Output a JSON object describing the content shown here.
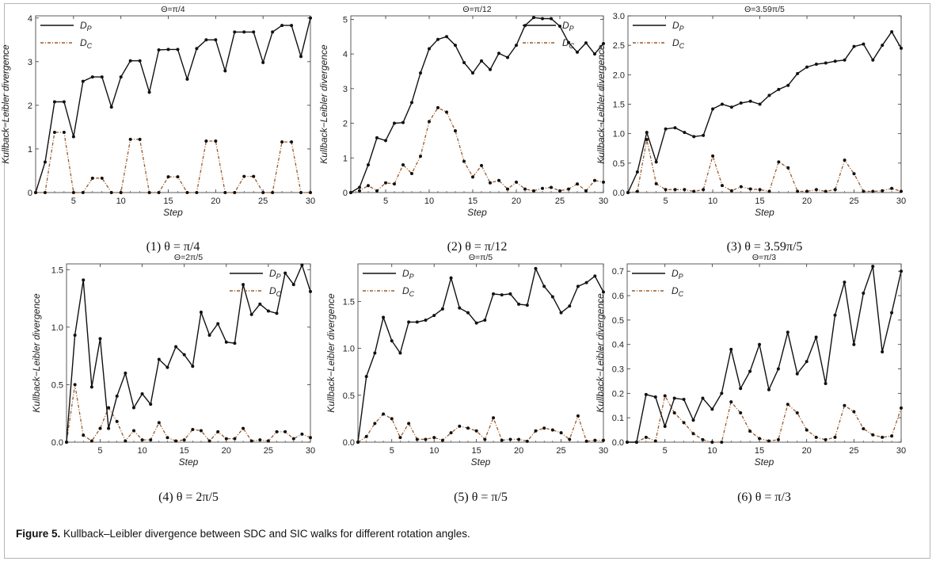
{
  "figure_caption": {
    "label": "Figure 5.",
    "text": " Kullback–Leibler divergence between SDC and SIC walks for different rotation angles."
  },
  "colors": {
    "dp": "#111111",
    "dc": "#9c5a2a"
  },
  "chart_data": [
    {
      "type": "line",
      "title": "Θ=π/4",
      "caption": "(1) θ = π/4",
      "xlabel": "Step",
      "ylabel": "Kullback−Leibler divergence",
      "xlim": [
        1,
        30
      ],
      "ylim": [
        0,
        4.05
      ],
      "xticks": [
        5,
        10,
        15,
        20,
        25,
        30
      ],
      "yticks": [
        0,
        1,
        2,
        3,
        4
      ],
      "yticklabels": [
        "0",
        "1",
        "2",
        "3",
        "4"
      ],
      "legend": "top-left",
      "series": [
        {
          "name": "D",
          "sub": "P",
          "style": "solid",
          "values": [
            0,
            0.7,
            2.08,
            2.08,
            1.28,
            2.55,
            2.65,
            2.65,
            1.96,
            2.65,
            3.02,
            3.02,
            2.3,
            3.27,
            3.28,
            3.28,
            2.6,
            3.3,
            3.5,
            3.5,
            2.79,
            3.68,
            3.68,
            3.68,
            2.98,
            3.68,
            3.83,
            3.83,
            3.12,
            4.0
          ]
        },
        {
          "name": "D",
          "sub": "C",
          "style": "dashed",
          "values": [
            0,
            0,
            1.38,
            1.38,
            0,
            0,
            0.33,
            0.33,
            0,
            0,
            1.22,
            1.22,
            0,
            0,
            0.36,
            0.36,
            0,
            0,
            1.18,
            1.18,
            0,
            0,
            0.37,
            0.37,
            0,
            0,
            1.16,
            1.16,
            0,
            0
          ]
        }
      ]
    },
    {
      "type": "line",
      "title": "Θ=π/12",
      "caption": "(2) θ = π/12",
      "xlabel": "Step",
      "ylabel": "Kullback−Leibler divergence",
      "xlim": [
        1,
        30
      ],
      "ylim": [
        0,
        5.1
      ],
      "xticks": [
        5,
        10,
        15,
        20,
        25,
        30
      ],
      "yticks": [
        0,
        1,
        2,
        3,
        4,
        5
      ],
      "yticklabels": [
        "0",
        "1",
        "2",
        "3",
        "4",
        "5"
      ],
      "legend": "top-right",
      "series": [
        {
          "name": "D",
          "sub": "P",
          "style": "solid",
          "values": [
            0,
            0.15,
            0.8,
            1.58,
            1.5,
            2.0,
            2.02,
            2.6,
            3.45,
            4.15,
            4.42,
            4.5,
            4.25,
            3.75,
            3.45,
            3.8,
            3.55,
            4.02,
            3.9,
            4.25,
            4.82,
            5.05,
            5.02,
            5.02,
            4.8,
            4.33,
            4.05,
            4.32,
            4.0,
            4.3
          ]
        },
        {
          "name": "D",
          "sub": "C",
          "style": "dashed",
          "values": [
            0,
            0.05,
            0.2,
            0.05,
            0.28,
            0.25,
            0.8,
            0.55,
            1.05,
            2.05,
            2.45,
            2.32,
            1.78,
            0.9,
            0.45,
            0.78,
            0.28,
            0.35,
            0.1,
            0.3,
            0.1,
            0.05,
            0.12,
            0.15,
            0.05,
            0.1,
            0.25,
            0.05,
            0.35,
            0.3
          ]
        }
      ]
    },
    {
      "type": "line",
      "title": "Θ=3.59π/5",
      "caption": "(3) θ = 3.59π/5",
      "xlabel": "Step",
      "ylabel": "Kullback−Leibler divergence",
      "xlim": [
        1,
        30
      ],
      "ylim": [
        0,
        3.0
      ],
      "xticks": [
        5,
        10,
        15,
        20,
        25,
        30
      ],
      "yticks": [
        0,
        0.5,
        1.0,
        1.5,
        2.0,
        2.5,
        3.0
      ],
      "yticklabels": [
        "0.0",
        "0.5",
        "1.0",
        "1.5",
        "2.0",
        "2.5",
        "3.0"
      ],
      "legend": "top-left",
      "series": [
        {
          "name": "D",
          "sub": "P",
          "style": "solid",
          "values": [
            0,
            0.35,
            1.02,
            0.52,
            1.08,
            1.1,
            1.02,
            0.95,
            0.97,
            1.42,
            1.5,
            1.45,
            1.52,
            1.55,
            1.5,
            1.65,
            1.75,
            1.82,
            2.02,
            2.13,
            2.18,
            2.2,
            2.23,
            2.25,
            2.48,
            2.52,
            2.25,
            2.5,
            2.73,
            2.45
          ]
        },
        {
          "name": "D",
          "sub": "C",
          "style": "dashed",
          "values": [
            0,
            0.02,
            0.9,
            0.15,
            0.05,
            0.05,
            0.05,
            0.02,
            0.05,
            0.62,
            0.12,
            0.03,
            0.1,
            0.06,
            0.05,
            0.02,
            0.52,
            0.42,
            0.02,
            0.02,
            0.05,
            0.02,
            0.05,
            0.55,
            0.32,
            0.02,
            0.02,
            0.03,
            0.07,
            0.02
          ]
        }
      ]
    },
    {
      "type": "line",
      "title": "Θ=2π/5",
      "caption": "(4) θ = 2π/5",
      "xlabel": "Step",
      "ylabel": "Kullback−Leibler divergence",
      "xlim": [
        1,
        30
      ],
      "ylim": [
        0,
        1.55
      ],
      "xticks": [
        5,
        10,
        15,
        20,
        25,
        30
      ],
      "yticks": [
        0,
        0.5,
        1.0,
        1.5
      ],
      "yticklabels": [
        "0.0",
        "0.5",
        "1.0",
        "1.5"
      ],
      "legend": "top-right",
      "series": [
        {
          "name": "D",
          "sub": "P",
          "style": "solid",
          "values": [
            0,
            0.93,
            1.41,
            0.48,
            0.9,
            0.12,
            0.4,
            0.6,
            0.3,
            0.42,
            0.33,
            0.72,
            0.65,
            0.83,
            0.76,
            0.66,
            1.13,
            0.93,
            1.03,
            0.87,
            0.86,
            1.37,
            1.11,
            1.2,
            1.14,
            1.12,
            1.47,
            1.37,
            1.54,
            1.31
          ]
        },
        {
          "name": "D",
          "sub": "C",
          "style": "dashed",
          "values": [
            0,
            0.5,
            0.06,
            0.01,
            0.12,
            0.3,
            0.18,
            0.01,
            0.1,
            0.02,
            0.02,
            0.17,
            0.04,
            0.01,
            0.02,
            0.11,
            0.1,
            0.01,
            0.09,
            0.03,
            0.03,
            0.12,
            0.01,
            0.02,
            0.01,
            0.09,
            0.09,
            0.03,
            0.07,
            0.04
          ]
        }
      ]
    },
    {
      "type": "line",
      "title": "Θ=π/5",
      "caption": "(5) θ = π/5",
      "xlabel": "Step",
      "ylabel": "Kullback−Leibler divergence",
      "xlim": [
        1,
        30
      ],
      "ylim": [
        0,
        1.9
      ],
      "xticks": [
        5,
        10,
        15,
        20,
        25,
        30
      ],
      "yticks": [
        0,
        0.5,
        1.0,
        1.5
      ],
      "yticklabels": [
        "0.0",
        "0.5",
        "1.0",
        "1.5"
      ],
      "legend": "top-left",
      "series": [
        {
          "name": "D",
          "sub": "P",
          "style": "solid",
          "values": [
            0,
            0.7,
            0.95,
            1.33,
            1.08,
            0.95,
            1.28,
            1.28,
            1.3,
            1.35,
            1.42,
            1.75,
            1.43,
            1.38,
            1.27,
            1.3,
            1.58,
            1.57,
            1.58,
            1.47,
            1.46,
            1.85,
            1.66,
            1.55,
            1.38,
            1.45,
            1.66,
            1.7,
            1.77,
            1.6
          ]
        },
        {
          "name": "D",
          "sub": "C",
          "style": "dashed",
          "values": [
            0,
            0.06,
            0.2,
            0.3,
            0.25,
            0.05,
            0.2,
            0.03,
            0.03,
            0.05,
            0.02,
            0.1,
            0.17,
            0.15,
            0.12,
            0.03,
            0.26,
            0.02,
            0.03,
            0.03,
            0.01,
            0.12,
            0.15,
            0.13,
            0.1,
            0.03,
            0.28,
            0.01,
            0.02,
            0.02
          ]
        }
      ]
    },
    {
      "type": "line",
      "title": "Θ=π/3",
      "caption": "(6) θ = π/3",
      "xlabel": "Step",
      "ylabel": "Kullback−Leibler divergence",
      "xlim": [
        1,
        30
      ],
      "ylim": [
        0,
        0.73
      ],
      "xticks": [
        5,
        10,
        15,
        20,
        25,
        30
      ],
      "yticks": [
        0,
        0.1,
        0.2,
        0.3,
        0.4,
        0.5,
        0.6,
        0.7
      ],
      "yticklabels": [
        "0.0",
        "0.1",
        "0.2",
        "0.3",
        "0.4",
        "0.5",
        "0.6",
        "0.7"
      ],
      "legend": "top-left",
      "series": [
        {
          "name": "D",
          "sub": "P",
          "style": "solid",
          "values": [
            0,
            0,
            0.195,
            0.185,
            0.065,
            0.18,
            0.175,
            0.09,
            0.18,
            0.135,
            0.2,
            0.38,
            0.22,
            0.29,
            0.4,
            0.215,
            0.3,
            0.45,
            0.28,
            0.33,
            0.43,
            0.24,
            0.52,
            0.655,
            0.4,
            0.61,
            0.72,
            0.37,
            0.53,
            0.7
          ]
        },
        {
          "name": "D",
          "sub": "C",
          "style": "dashed",
          "values": [
            0,
            0,
            0.02,
            0.005,
            0.19,
            0.12,
            0.08,
            0.035,
            0.01,
            0.0,
            0.0,
            0.165,
            0.12,
            0.045,
            0.015,
            0.005,
            0.01,
            0.155,
            0.12,
            0.05,
            0.02,
            0.01,
            0.02,
            0.15,
            0.125,
            0.055,
            0.03,
            0.02,
            0.025,
            0.14
          ]
        }
      ]
    }
  ]
}
